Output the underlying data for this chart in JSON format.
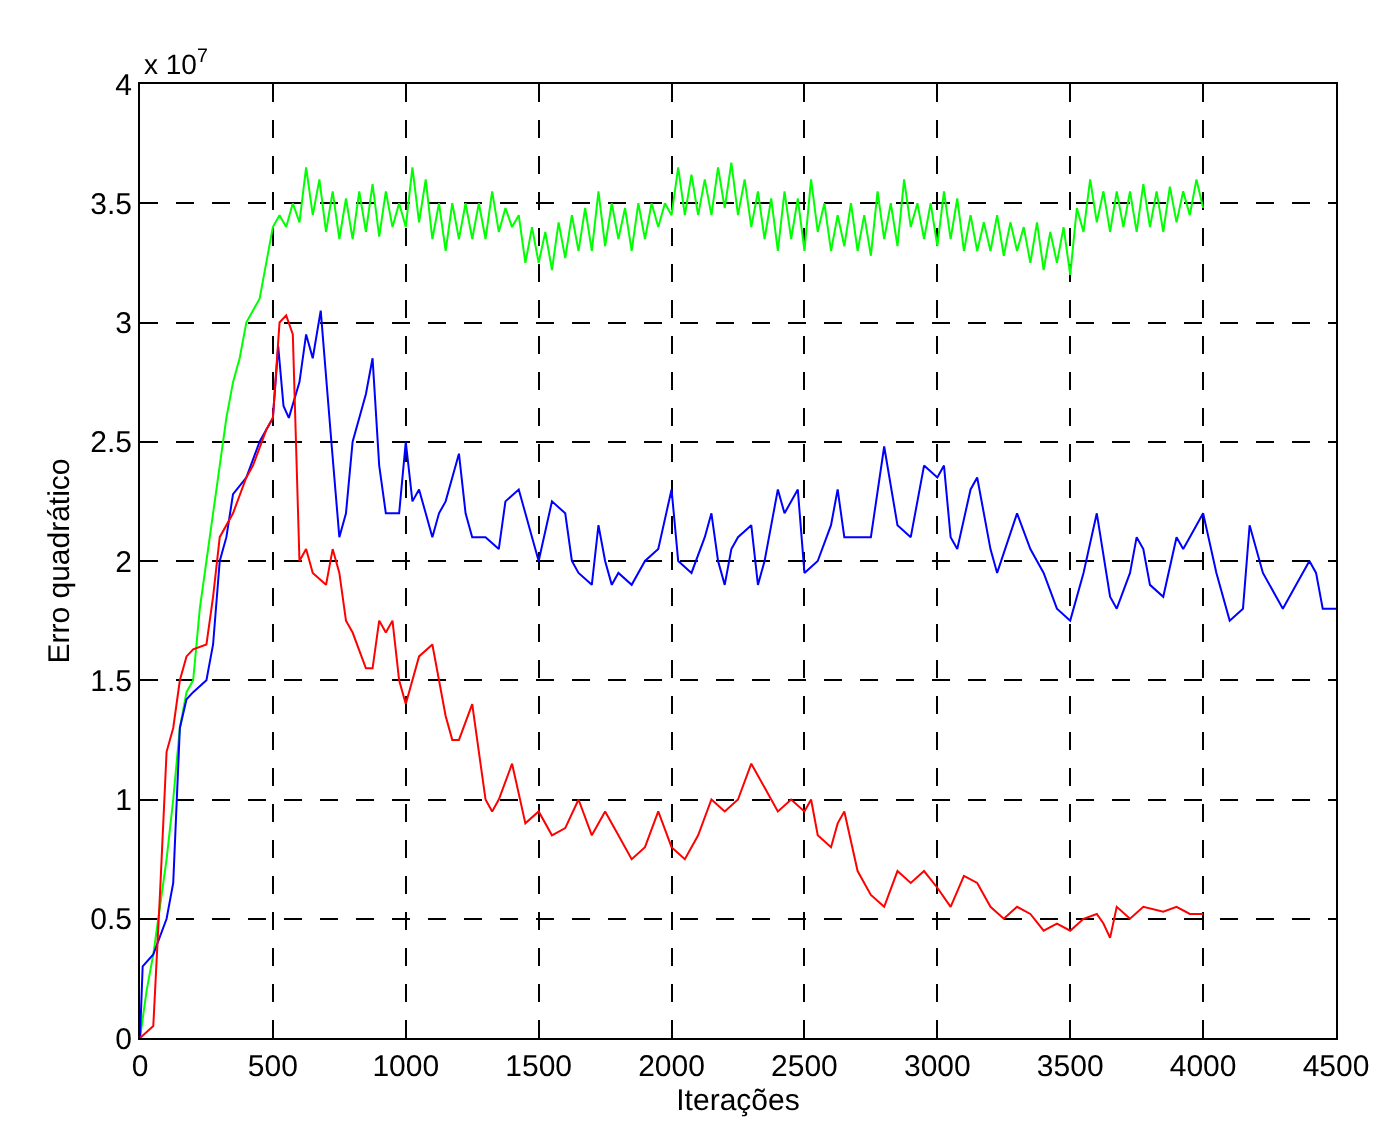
{
  "chart_data": {
    "type": "line",
    "xlabel": "Iterações",
    "ylabel": "Erro quadrático",
    "annotations": [
      "x 10$^{7}$"
    ],
    "xlim": [
      0,
      4500
    ],
    "xticks": [
      0,
      500,
      1000,
      1500,
      2000,
      2500,
      3000,
      3500,
      4000,
      4500
    ],
    "ylim": [
      0,
      4
    ],
    "yticks": [
      0,
      0.5,
      1,
      1.5,
      2,
      2.5,
      3,
      3.5,
      4
    ],
    "grid": true,
    "line_style": "solid",
    "marker": "none",
    "series": [
      {
        "color": "#00ff00",
        "x": [
          0,
          25,
          50,
          75,
          100,
          125,
          150,
          175,
          200,
          225,
          250,
          275,
          300,
          325,
          350,
          375,
          400,
          425,
          450,
          475,
          500,
          525,
          550,
          575,
          600,
          625,
          650,
          675,
          700,
          725,
          750,
          775,
          800,
          825,
          850,
          875,
          900,
          925,
          950,
          975,
          1000,
          1025,
          1050,
          1075,
          1100,
          1125,
          1150,
          1175,
          1200,
          1225,
          1250,
          1275,
          1300,
          1325,
          1350,
          1375,
          1400,
          1425,
          1450,
          1475,
          1500,
          1525,
          1550,
          1575,
          1600,
          1625,
          1650,
          1675,
          1700,
          1725,
          1750,
          1775,
          1800,
          1825,
          1850,
          1875,
          1900,
          1925,
          1950,
          1975,
          2000,
          2025,
          2050,
          2075,
          2100,
          2125,
          2150,
          2175,
          2200,
          2225,
          2250,
          2275,
          2300,
          2325,
          2350,
          2375,
          2400,
          2425,
          2450,
          2475,
          2500,
          2525,
          2550,
          2575,
          2600,
          2625,
          2650,
          2675,
          2700,
          2725,
          2750,
          2775,
          2800,
          2825,
          2850,
          2875,
          2900,
          2925,
          2950,
          2975,
          3000,
          3025,
          3050,
          3075,
          3100,
          3125,
          3150,
          3175,
          3200,
          3225,
          3250,
          3275,
          3300,
          3325,
          3350,
          3375,
          3400,
          3425,
          3450,
          3475,
          3500,
          3525,
          3550,
          3575,
          3600,
          3625,
          3650,
          3675,
          3700,
          3725,
          3750,
          3775,
          3800,
          3825,
          3850,
          3875,
          3900,
          3925,
          3950,
          3975,
          4000
        ],
        "values": [
          0,
          0.2,
          0.35,
          0.55,
          0.75,
          1.0,
          1.3,
          1.45,
          1.5,
          1.8,
          2.0,
          2.2,
          2.4,
          2.6,
          2.75,
          2.85,
          3.0,
          3.05,
          3.1,
          3.25,
          3.4,
          3.45,
          3.4,
          3.5,
          3.42,
          3.65,
          3.45,
          3.6,
          3.38,
          3.55,
          3.35,
          3.52,
          3.35,
          3.55,
          3.38,
          3.58,
          3.36,
          3.55,
          3.4,
          3.5,
          3.4,
          3.65,
          3.42,
          3.6,
          3.35,
          3.5,
          3.3,
          3.5,
          3.35,
          3.5,
          3.35,
          3.5,
          3.35,
          3.55,
          3.38,
          3.48,
          3.4,
          3.45,
          3.25,
          3.4,
          3.25,
          3.38,
          3.22,
          3.42,
          3.27,
          3.45,
          3.3,
          3.48,
          3.3,
          3.55,
          3.32,
          3.5,
          3.35,
          3.48,
          3.3,
          3.5,
          3.35,
          3.5,
          3.4,
          3.5,
          3.45,
          3.65,
          3.45,
          3.62,
          3.45,
          3.6,
          3.45,
          3.65,
          3.48,
          3.67,
          3.45,
          3.6,
          3.4,
          3.55,
          3.35,
          3.52,
          3.3,
          3.55,
          3.35,
          3.52,
          3.3,
          3.6,
          3.38,
          3.5,
          3.3,
          3.45,
          3.32,
          3.5,
          3.3,
          3.45,
          3.28,
          3.55,
          3.35,
          3.5,
          3.32,
          3.6,
          3.4,
          3.5,
          3.35,
          3.5,
          3.32,
          3.55,
          3.35,
          3.52,
          3.3,
          3.45,
          3.3,
          3.42,
          3.3,
          3.45,
          3.28,
          3.42,
          3.3,
          3.4,
          3.25,
          3.42,
          3.22,
          3.38,
          3.25,
          3.4,
          3.2,
          3.48,
          3.38,
          3.6,
          3.42,
          3.55,
          3.38,
          3.55,
          3.4,
          3.55,
          3.38,
          3.58,
          3.4,
          3.55,
          3.38,
          3.57,
          3.42,
          3.55,
          3.45,
          3.6,
          3.48
        ]
      },
      {
        "color": "#0000ff",
        "x": [
          0,
          10,
          50,
          100,
          125,
          150,
          175,
          200,
          250,
          275,
          300,
          325,
          350,
          400,
          450,
          500,
          520,
          540,
          560,
          600,
          625,
          650,
          680,
          720,
          750,
          775,
          800,
          825,
          850,
          875,
          900,
          925,
          950,
          975,
          1000,
          1025,
          1050,
          1075,
          1100,
          1125,
          1150,
          1200,
          1225,
          1250,
          1300,
          1350,
          1375,
          1425,
          1450,
          1475,
          1500,
          1550,
          1600,
          1625,
          1650,
          1700,
          1725,
          1750,
          1775,
          1800,
          1850,
          1900,
          1950,
          2000,
          2025,
          2075,
          2125,
          2150,
          2175,
          2200,
          2225,
          2250,
          2300,
          2325,
          2350,
          2400,
          2425,
          2475,
          2500,
          2550,
          2600,
          2625,
          2650,
          2700,
          2750,
          2800,
          2850,
          2900,
          2950,
          3000,
          3025,
          3050,
          3075,
          3125,
          3150,
          3200,
          3225,
          3300,
          3350,
          3400,
          3450,
          3500,
          3550,
          3600,
          3650,
          3675,
          3725,
          3750,
          3775,
          3800,
          3850,
          3900,
          3925,
          3950,
          4000,
          4050,
          4100,
          4150,
          4175,
          4225,
          4275,
          4300,
          4350,
          4400,
          4425,
          4450,
          4500
        ],
        "values": [
          0,
          0.3,
          0.35,
          0.5,
          0.65,
          1.3,
          1.42,
          1.45,
          1.5,
          1.65,
          2.0,
          2.1,
          2.28,
          2.35,
          2.5,
          2.6,
          2.9,
          2.65,
          2.6,
          2.75,
          2.95,
          2.85,
          3.05,
          2.5,
          2.1,
          2.2,
          2.5,
          2.6,
          2.7,
          2.85,
          2.4,
          2.2,
          2.2,
          2.2,
          2.5,
          2.25,
          2.3,
          2.2,
          2.1,
          2.2,
          2.25,
          2.45,
          2.2,
          2.1,
          2.1,
          2.05,
          2.25,
          2.3,
          2.2,
          2.1,
          2.0,
          2.25,
          2.2,
          2.0,
          1.95,
          1.9,
          2.15,
          2.0,
          1.9,
          1.95,
          1.9,
          2.0,
          2.05,
          2.3,
          2.0,
          1.95,
          2.1,
          2.2,
          2.0,
          1.9,
          2.05,
          2.1,
          2.15,
          1.9,
          2.0,
          2.3,
          2.2,
          2.3,
          1.95,
          2.0,
          2.15,
          2.3,
          2.1,
          2.1,
          2.1,
          2.48,
          2.15,
          2.1,
          2.4,
          2.35,
          2.4,
          2.1,
          2.05,
          2.3,
          2.35,
          2.05,
          1.95,
          2.2,
          2.05,
          1.95,
          1.8,
          1.75,
          1.95,
          2.2,
          1.85,
          1.8,
          1.95,
          2.1,
          2.05,
          1.9,
          1.85,
          2.1,
          2.05,
          2.1,
          2.2,
          1.95,
          1.75,
          1.8,
          2.15,
          1.95,
          1.85,
          1.8,
          1.9,
          2.0,
          1.95,
          1.8,
          1.8
        ]
      },
      {
        "color": "#ff0000",
        "x": [
          0,
          50,
          75,
          100,
          125,
          150,
          175,
          200,
          250,
          275,
          300,
          350,
          400,
          425,
          475,
          500,
          525,
          550,
          575,
          600,
          625,
          650,
          700,
          725,
          750,
          775,
          800,
          850,
          875,
          900,
          925,
          950,
          975,
          1000,
          1050,
          1100,
          1150,
          1175,
          1200,
          1250,
          1275,
          1300,
          1325,
          1350,
          1400,
          1450,
          1500,
          1550,
          1600,
          1650,
          1700,
          1750,
          1800,
          1850,
          1900,
          1950,
          2000,
          2050,
          2100,
          2150,
          2200,
          2250,
          2300,
          2350,
          2400,
          2450,
          2500,
          2525,
          2550,
          2600,
          2625,
          2650,
          2700,
          2750,
          2800,
          2850,
          2900,
          2950,
          3000,
          3050,
          3100,
          3150,
          3200,
          3250,
          3300,
          3350,
          3400,
          3450,
          3500,
          3550,
          3600,
          3625,
          3650,
          3675,
          3725,
          3775,
          3850,
          3900,
          3950,
          4000
        ],
        "values": [
          0,
          0.05,
          0.6,
          1.2,
          1.3,
          1.5,
          1.6,
          1.63,
          1.65,
          1.85,
          2.1,
          2.2,
          2.35,
          2.4,
          2.55,
          2.6,
          3.0,
          3.03,
          2.95,
          2.0,
          2.05,
          1.95,
          1.9,
          2.05,
          1.95,
          1.75,
          1.7,
          1.55,
          1.55,
          1.75,
          1.7,
          1.75,
          1.5,
          1.4,
          1.6,
          1.65,
          1.35,
          1.25,
          1.25,
          1.4,
          1.2,
          1.0,
          0.95,
          1.0,
          1.15,
          0.9,
          0.95,
          0.85,
          0.88,
          1.0,
          0.85,
          0.95,
          0.85,
          0.75,
          0.8,
          0.95,
          0.8,
          0.75,
          0.85,
          1.0,
          0.95,
          1.0,
          1.15,
          1.05,
          0.95,
          1.0,
          0.95,
          1.0,
          0.85,
          0.8,
          0.9,
          0.95,
          0.7,
          0.6,
          0.55,
          0.7,
          0.65,
          0.7,
          0.63,
          0.55,
          0.68,
          0.65,
          0.55,
          0.5,
          0.55,
          0.52,
          0.45,
          0.48,
          0.45,
          0.5,
          0.52,
          0.48,
          0.42,
          0.55,
          0.5,
          0.55,
          0.53,
          0.55,
          0.52,
          0.52
        ]
      }
    ]
  }
}
